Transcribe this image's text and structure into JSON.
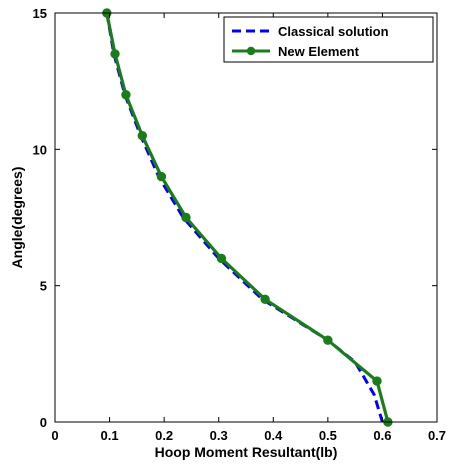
{
  "chart_data": {
    "type": "line",
    "title": "",
    "xlabel": "Hoop Moment Resultant(lb)",
    "ylabel": "Angle(degrees)",
    "xlim": [
      0,
      0.7
    ],
    "ylim": [
      0,
      15
    ],
    "xticks": [
      0,
      0.1,
      0.2,
      0.3,
      0.4,
      0.5,
      0.6,
      0.7
    ],
    "xtick_labels": [
      "0",
      "0.1",
      "0.2",
      "0.3",
      "0.4",
      "0.5",
      "0.6",
      "0.7"
    ],
    "yticks": [
      0,
      5,
      10,
      15
    ],
    "ytick_labels": [
      "0",
      "5",
      "10",
      "15"
    ],
    "grid": false,
    "legend_position": "top-right",
    "series": [
      {
        "name": "Classical solution",
        "color": "#0000ff",
        "style": "dashed",
        "markers": false,
        "x": [
          0.095,
          0.108,
          0.128,
          0.157,
          0.19,
          0.235,
          0.3,
          0.38,
          0.5,
          0.55,
          0.585,
          0.6
        ],
        "y": [
          15,
          13.5,
          12,
          10.5,
          9,
          7.5,
          6,
          4.5,
          3.0,
          2.2,
          1.0,
          0.0
        ]
      },
      {
        "name": "New Element",
        "color": "#1a7d1a",
        "style": "solid",
        "markers": true,
        "x": [
          0.095,
          0.11,
          0.13,
          0.16,
          0.195,
          0.24,
          0.305,
          0.385,
          0.5,
          0.59,
          0.61
        ],
        "y": [
          15,
          13.5,
          12,
          10.5,
          9,
          7.5,
          6,
          4.5,
          3.0,
          1.5,
          0.0
        ]
      }
    ]
  }
}
